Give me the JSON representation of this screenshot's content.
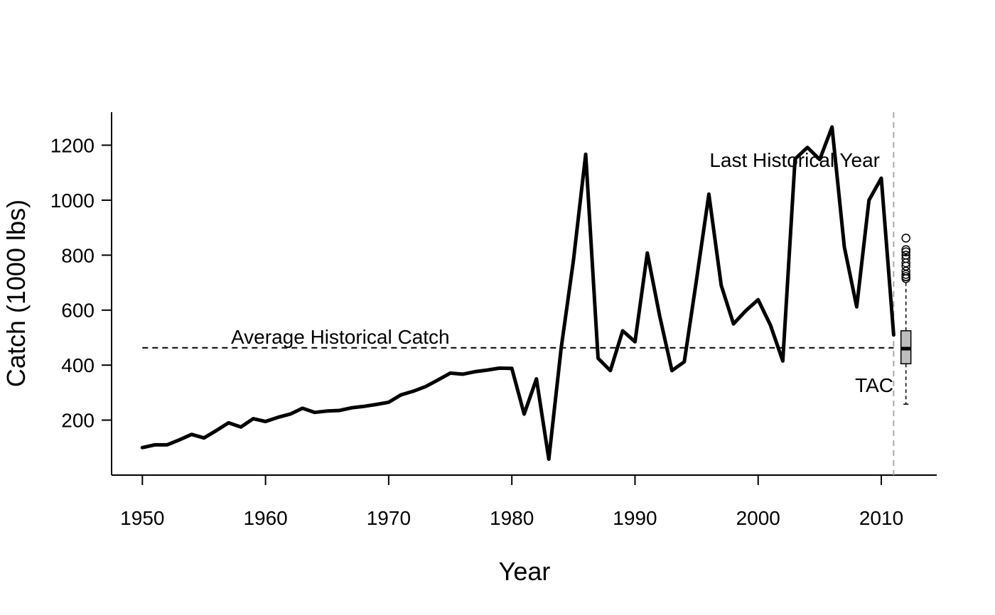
{
  "chart_data": {
    "type": "line",
    "title": "",
    "xlabel": "Year",
    "ylabel": "Catch (1000 lbs)",
    "xlim": [
      1947.5,
      2014.5
    ],
    "ylim": [
      0,
      1320
    ],
    "x_ticks": [
      1950,
      1960,
      1970,
      1980,
      1990,
      2000,
      2010
    ],
    "y_ticks": [
      200,
      400,
      600,
      800,
      1000,
      1200
    ],
    "grid": false,
    "series": [
      {
        "name": "",
        "color": "#000000",
        "x": [
          1950,
          1951,
          1952,
          1953,
          1954,
          1955,
          1956,
          1957,
          1958,
          1959,
          1960,
          1961,
          1962,
          1963,
          1964,
          1965,
          1966,
          1967,
          1968,
          1969,
          1970,
          1971,
          1972,
          1973,
          1974,
          1975,
          1976,
          1977,
          1978,
          1979,
          1980,
          1981,
          1982,
          1983,
          1984,
          1985,
          1986,
          1987,
          1988,
          1989,
          1990,
          1991,
          1992,
          1993,
          1994,
          1995,
          1996,
          1997,
          1998,
          1999,
          2000,
          2001,
          2002,
          2003,
          2004,
          2005,
          2006,
          2007,
          2008,
          2009,
          2010,
          2011
        ],
        "y": [
          100,
          110,
          110,
          128,
          148,
          135,
          162,
          190,
          175,
          205,
          195,
          210,
          222,
          243,
          228,
          233,
          235,
          245,
          250,
          257,
          265,
          292,
          305,
          322,
          346,
          371,
          367,
          376,
          382,
          389,
          388,
          222,
          350,
          58,
          460,
          780,
          1167,
          425,
          380,
          525,
          485,
          808,
          580,
          380,
          412,
          712,
          1022,
          690,
          550,
          598,
          638,
          545,
          415,
          1150,
          1192,
          1148,
          1266,
          830,
          612,
          1000,
          1080,
          510
        ]
      }
    ],
    "average_historical_catch": {
      "value": 463,
      "label": "Average Historical Catch"
    },
    "last_historical_year": {
      "x": 2011,
      "label": "Last Historical Year",
      "color": "#aaaaaa"
    },
    "tac_boxplot": {
      "label": "TAC",
      "x": 2012,
      "whisker_low": 258,
      "q1": 405,
      "median": 460,
      "q3": 525,
      "whisker_high": 708,
      "outliers": [
        715,
        722,
        730,
        742,
        760,
        772,
        788,
        800,
        812,
        820,
        862
      ],
      "fill_color": "#bebebe"
    }
  }
}
